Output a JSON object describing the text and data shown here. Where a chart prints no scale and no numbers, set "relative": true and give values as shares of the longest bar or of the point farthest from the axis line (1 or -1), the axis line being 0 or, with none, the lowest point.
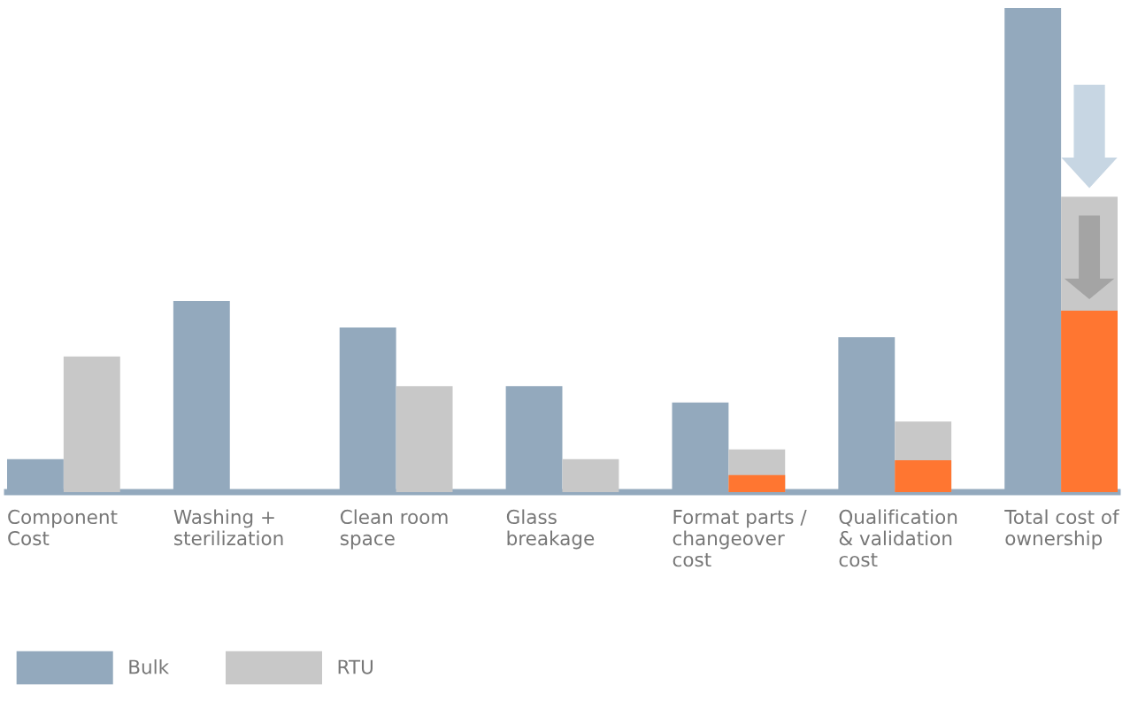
{
  "chart_data": {
    "type": "bar",
    "relative": true,
    "legend": "bottom left",
    "categories": [
      "Component\nCost",
      "Washing +\nsterilization",
      "Clean room\nspace",
      "Glass\nbreakage",
      "Format parts /\nchangeover\ncost",
      "Qualification\n& validation\ncost",
      "Total cost of\nownership"
    ],
    "series": [
      {
        "name": "Bulk",
        "color": "#93a9bd",
        "values": [
          0.068,
          0.395,
          0.34,
          0.219,
          0.185,
          0.32,
          1
        ]
      },
      {
        "name": "RTU",
        "color": "#c8c8c8",
        "values": [
          0.28,
          null,
          0.219,
          0.068,
          0.088,
          0.146,
          0.61
        ]
      },
      {
        "color": "#ff7631",
        "values": [
          null,
          null,
          null,
          null,
          0.035,
          0.066,
          0.375
        ]
      }
    ]
  }
}
